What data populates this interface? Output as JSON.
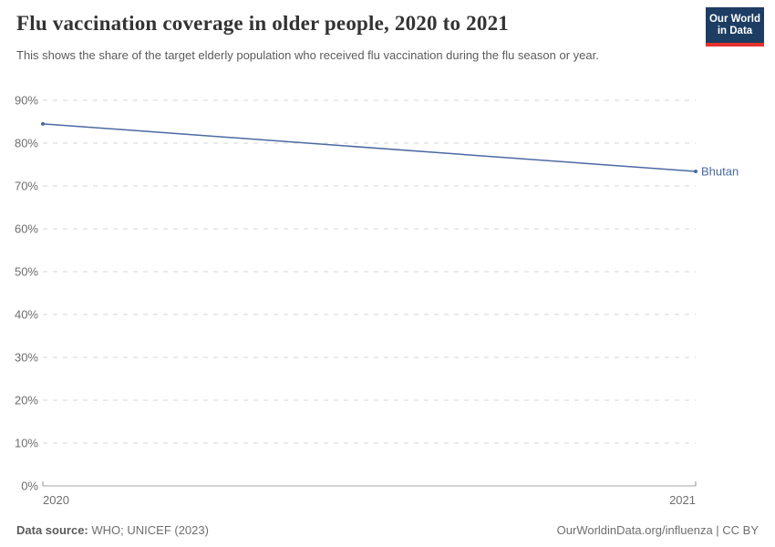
{
  "header": {
    "title": "Flu vaccination coverage in older people, 2020 to 2021",
    "subtitle": "This shows the share of the target elderly population who received flu vaccination during the flu season or year.",
    "logo": {
      "line1": "Our World",
      "line2": "in Data",
      "bg_color": "#1d3d63",
      "stripe_color": "#e5322c"
    }
  },
  "chart_data": {
    "type": "line",
    "title": "Flu vaccination coverage in older people, 2020 to 2021",
    "x": [
      2020,
      2021
    ],
    "xticks": [
      "2020",
      "2021"
    ],
    "series": [
      {
        "name": "Bhutan",
        "values": [
          84.5,
          73.4
        ],
        "color": "#4c69a2"
      }
    ],
    "ylim": [
      0,
      90
    ],
    "ytick_step": 10,
    "ytick_suffix": "%",
    "grid": "horizontal-dashed",
    "legend": "end-of-line-label"
  },
  "footer": {
    "source_label": "Data source:",
    "source_value": "WHO; UNICEF (2023)",
    "rights": "OurWorldinData.org/influenza | CC BY"
  },
  "colors": {
    "grid": "#d5d5d5",
    "axis": "#a5a5a5",
    "axis_tick": "#8f8f8f",
    "tick_label": "#6e6e6e"
  }
}
